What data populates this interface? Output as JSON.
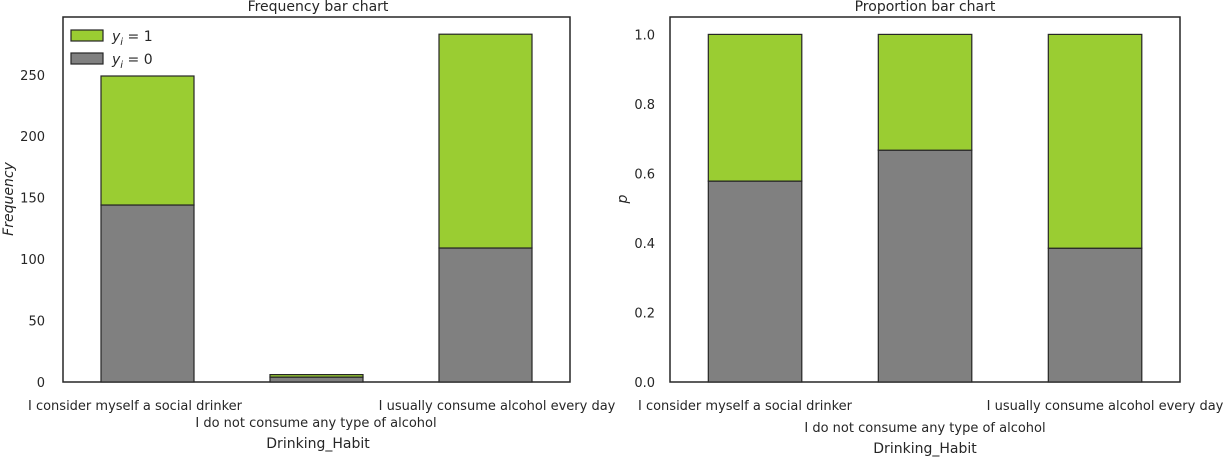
{
  "colors": {
    "y0": "#808080",
    "y1": "#9acd32",
    "edge": "#262626"
  },
  "chart_data": [
    {
      "type": "bar",
      "stacked": true,
      "title": "Frequency bar chart",
      "xlabel": "Drinking_Habit",
      "ylabel": "Frequency",
      "categories": [
        "I consider myself a social drinker",
        "I do not consume any type of alcohol",
        "I usually consume alcohol every day"
      ],
      "series": [
        {
          "name": "y_i = 0",
          "color": "#808080",
          "values": [
            144,
            4,
            109
          ]
        },
        {
          "name": "y_i = 1",
          "color": "#9acd32",
          "values": [
            105,
            2,
            174
          ]
        }
      ],
      "ylim": [
        0,
        297
      ],
      "yticks": [
        "0",
        "50",
        "100",
        "150",
        "200",
        "250"
      ],
      "ytick_values": [
        0,
        50,
        100,
        150,
        200,
        250
      ],
      "grid": false,
      "legend": {
        "position": "top-left",
        "entries": [
          {
            "base": "y",
            "sub": "i",
            "rest": " = 1",
            "color": "#9acd32"
          },
          {
            "base": "y",
            "sub": "i",
            "rest": " = 0",
            "color": "#808080"
          }
        ]
      }
    },
    {
      "type": "bar",
      "stacked": true,
      "title": "Proportion bar chart",
      "xlabel": "Drinking_Habit",
      "ylabel": "p",
      "categories": [
        "I consider myself a social drinker",
        "I do not consume any type of alcohol",
        "I usually consume alcohol every day"
      ],
      "series": [
        {
          "name": "y_i = 0",
          "color": "#808080",
          "values": [
            0.578,
            0.667,
            0.385
          ]
        },
        {
          "name": "y_i = 1",
          "color": "#9acd32",
          "values": [
            0.422,
            0.333,
            0.615
          ]
        }
      ],
      "ylim": [
        0,
        1.05
      ],
      "yticks": [
        "0.0",
        "0.2",
        "0.4",
        "0.6",
        "0.8",
        "1.0"
      ],
      "ytick_values": [
        0,
        0.2,
        0.4,
        0.6,
        0.8,
        1.0
      ],
      "grid": false
    }
  ]
}
